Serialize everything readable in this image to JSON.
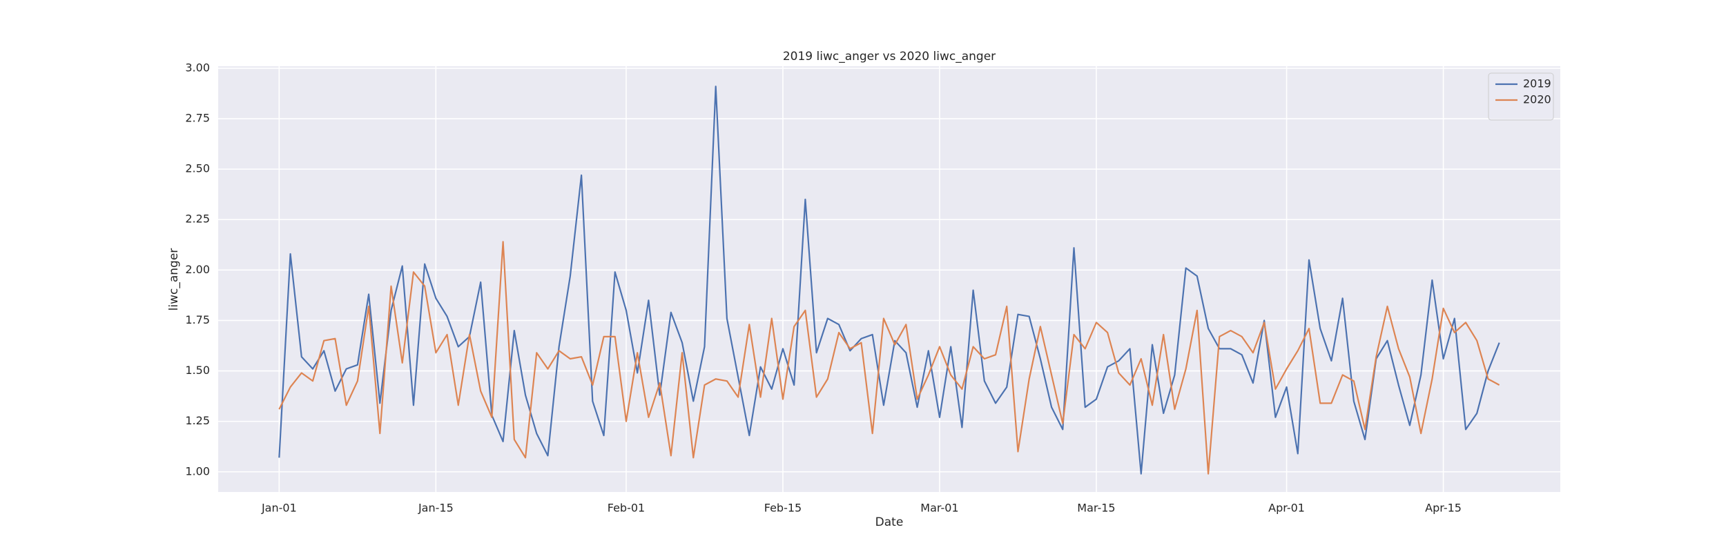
{
  "chart_data": {
    "type": "line",
    "title": "2019 liwc_anger vs 2020 liwc_anger",
    "xlabel": "Date",
    "ylabel": "liwc_anger",
    "x": [
      "Jan-01",
      "Jan-02",
      "Jan-03",
      "Jan-04",
      "Jan-05",
      "Jan-06",
      "Jan-07",
      "Jan-08",
      "Jan-09",
      "Jan-10",
      "Jan-11",
      "Jan-12",
      "Jan-13",
      "Jan-14",
      "Jan-15",
      "Jan-16",
      "Jan-17",
      "Jan-18",
      "Jan-19",
      "Jan-20",
      "Jan-21",
      "Jan-22",
      "Jan-23",
      "Jan-24",
      "Jan-25",
      "Jan-26",
      "Jan-27",
      "Jan-28",
      "Jan-29",
      "Jan-30",
      "Jan-31",
      "Feb-01",
      "Feb-02",
      "Feb-03",
      "Feb-04",
      "Feb-05",
      "Feb-06",
      "Feb-07",
      "Feb-08",
      "Feb-09",
      "Feb-10",
      "Feb-11",
      "Feb-12",
      "Feb-13",
      "Feb-14",
      "Feb-15",
      "Feb-16",
      "Feb-17",
      "Feb-18",
      "Feb-19",
      "Feb-20",
      "Feb-21",
      "Feb-22",
      "Feb-23",
      "Feb-24",
      "Feb-25",
      "Feb-26",
      "Feb-27",
      "Feb-28",
      "Mar-01",
      "Mar-02",
      "Mar-03",
      "Mar-04",
      "Mar-05",
      "Mar-06",
      "Mar-07",
      "Mar-08",
      "Mar-09",
      "Mar-10",
      "Mar-11",
      "Mar-12",
      "Mar-13",
      "Mar-14",
      "Mar-15",
      "Mar-16",
      "Mar-17",
      "Mar-18",
      "Mar-19",
      "Mar-20",
      "Mar-21",
      "Mar-22",
      "Mar-23",
      "Mar-24",
      "Mar-25",
      "Mar-26",
      "Mar-27",
      "Mar-28",
      "Mar-29",
      "Mar-30",
      "Mar-31",
      "Apr-01",
      "Apr-02",
      "Apr-03",
      "Apr-04",
      "Apr-05",
      "Apr-06",
      "Apr-07",
      "Apr-08",
      "Apr-09",
      "Apr-10",
      "Apr-11",
      "Apr-12",
      "Apr-13",
      "Apr-14",
      "Apr-15",
      "Apr-16",
      "Apr-17",
      "Apr-18",
      "Apr-19",
      "Apr-20"
    ],
    "xticks": [
      "Jan-01",
      "Jan-15",
      "Feb-01",
      "Feb-15",
      "Mar-01",
      "Mar-15",
      "Apr-01",
      "Apr-15"
    ],
    "series": [
      {
        "name": "2019",
        "color": "#4c72b0",
        "values": [
          1.07,
          2.08,
          1.57,
          1.51,
          1.6,
          1.4,
          1.51,
          1.53,
          1.88,
          1.34,
          1.8,
          2.02,
          1.33,
          2.03,
          1.86,
          1.77,
          1.62,
          1.67,
          1.94,
          1.28,
          1.15,
          1.7,
          1.38,
          1.19,
          1.08,
          1.62,
          1.97,
          2.47,
          1.35,
          1.18,
          1.99,
          1.8,
          1.49,
          1.85,
          1.38,
          1.79,
          1.64,
          1.35,
          1.62,
          2.91,
          1.76,
          1.47,
          1.18,
          1.52,
          1.41,
          1.61,
          1.43,
          2.35,
          1.59,
          1.76,
          1.73,
          1.6,
          1.66,
          1.68,
          1.33,
          1.65,
          1.59,
          1.32,
          1.6,
          1.27,
          1.62,
          1.22,
          1.9,
          1.45,
          1.34,
          1.42,
          1.78,
          1.77,
          1.56,
          1.32,
          1.21,
          2.11,
          1.32,
          1.36,
          1.52,
          1.55,
          1.61,
          0.99,
          1.63,
          1.29,
          1.48,
          2.01,
          1.97,
          1.71,
          1.61,
          1.61,
          1.58,
          1.44,
          1.75,
          1.27,
          1.42,
          1.09,
          2.05,
          1.71,
          1.55,
          1.86,
          1.35,
          1.16,
          1.56,
          1.65,
          1.43,
          1.23,
          1.48,
          1.95,
          1.56,
          1.76,
          1.21,
          1.29,
          1.5,
          1.64
        ]
      },
      {
        "name": "2020",
        "color": "#dd8452",
        "values": [
          1.31,
          1.42,
          1.49,
          1.45,
          1.65,
          1.66,
          1.33,
          1.45,
          1.82,
          1.19,
          1.92,
          1.54,
          1.99,
          1.92,
          1.59,
          1.68,
          1.33,
          1.68,
          1.4,
          1.27,
          2.14,
          1.16,
          1.07,
          1.59,
          1.51,
          1.6,
          1.56,
          1.57,
          1.43,
          1.67,
          1.67,
          1.25,
          1.59,
          1.27,
          1.44,
          1.08,
          1.59,
          1.07,
          1.43,
          1.46,
          1.45,
          1.37,
          1.73,
          1.37,
          1.76,
          1.36,
          1.72,
          1.8,
          1.37,
          1.46,
          1.69,
          1.61,
          1.64,
          1.19,
          1.76,
          1.63,
          1.73,
          1.36,
          1.48,
          1.62,
          1.48,
          1.41,
          1.62,
          1.56,
          1.58,
          1.82,
          1.1,
          1.46,
          1.72,
          1.48,
          1.24,
          1.68,
          1.61,
          1.74,
          1.69,
          1.49,
          1.43,
          1.56,
          1.33,
          1.68,
          1.31,
          1.51,
          1.8,
          0.99,
          1.67,
          1.7,
          1.67,
          1.59,
          1.74,
          1.41,
          1.51,
          1.6,
          1.71,
          1.34,
          1.34,
          1.48,
          1.45,
          1.21,
          1.57,
          1.82,
          1.61,
          1.47,
          1.19,
          1.46,
          1.81,
          1.69,
          1.74,
          1.65,
          1.46,
          1.43
        ]
      }
    ],
    "ylim": [
      0.9,
      3.01
    ],
    "yticks": [
      {
        "value": 1,
        "label": "1.00"
      },
      1.25,
      {
        "value": 1.5,
        "label": "1.50"
      },
      1.75,
      {
        "value": 2,
        "label": "2.00"
      },
      2.25,
      {
        "value": 2.5,
        "label": "2.50"
      },
      2.75,
      {
        "value": 3,
        "label": "3.00"
      }
    ],
    "grid": true,
    "legend": "upper right"
  }
}
